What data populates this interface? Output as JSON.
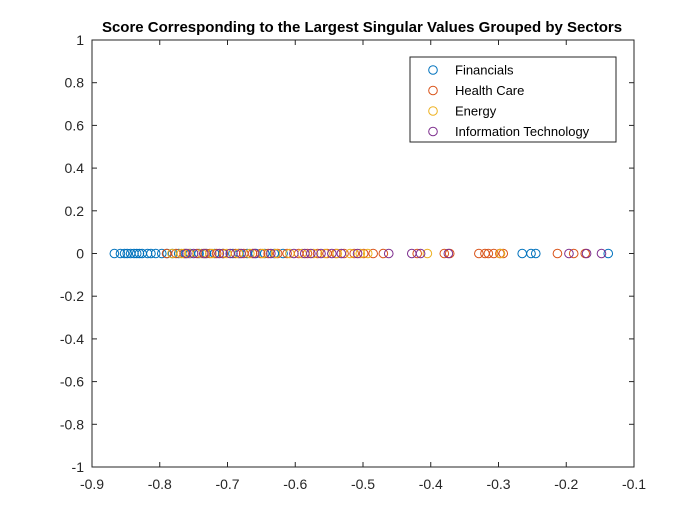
{
  "chart_data": {
    "type": "scatter",
    "title": "Score Corresponding to the Largest Singular Values Grouped by Sectors",
    "xlabel": "",
    "ylabel": "",
    "xlim": [
      -0.9,
      -0.1
    ],
    "ylim": [
      -1,
      1
    ],
    "x_ticks": [
      "-0.9",
      "-0.8",
      "-0.7",
      "-0.6",
      "-0.5",
      "-0.4",
      "-0.3",
      "-0.2",
      "-0.1"
    ],
    "y_ticks": [
      "1",
      "0.8",
      "0.6",
      "0.4",
      "0.2",
      "0",
      "-0.2",
      "-0.4",
      "-0.6",
      "-0.8",
      "-1"
    ],
    "grid": false,
    "legend_position": "top-right",
    "marker": "open-circle",
    "series": [
      {
        "name": "Financials",
        "color": "#0072BD",
        "x": [
          -0.867,
          -0.858,
          -0.852,
          -0.848,
          -0.843,
          -0.838,
          -0.834,
          -0.83,
          -0.826,
          -0.818,
          -0.813,
          -0.806,
          -0.797,
          -0.789,
          -0.781,
          -0.772,
          -0.762,
          -0.755,
          -0.742,
          -0.731,
          -0.719,
          -0.707,
          -0.692,
          -0.683,
          -0.671,
          -0.658,
          -0.645,
          -0.631,
          -0.618,
          -0.265,
          -0.252,
          -0.245,
          -0.138
        ],
        "y": [
          0,
          0,
          0,
          0,
          0,
          0,
          0,
          0,
          0,
          0,
          0,
          0,
          0,
          0,
          0,
          0,
          0,
          0,
          0,
          0,
          0,
          0,
          0,
          0,
          0,
          0,
          0,
          0,
          0,
          0,
          0,
          0,
          0
        ]
      },
      {
        "name": "Health Care",
        "color": "#D95319",
        "x": [
          -0.79,
          -0.776,
          -0.764,
          -0.745,
          -0.733,
          -0.726,
          -0.716,
          -0.706,
          -0.688,
          -0.676,
          -0.663,
          -0.651,
          -0.64,
          -0.626,
          -0.612,
          -0.595,
          -0.582,
          -0.567,
          -0.553,
          -0.54,
          -0.528,
          -0.513,
          -0.499,
          -0.485,
          -0.47,
          -0.42,
          -0.38,
          -0.372,
          -0.329,
          -0.32,
          -0.315,
          -0.307,
          -0.298,
          -0.293,
          -0.213,
          -0.189,
          -0.172
        ],
        "y": [
          0,
          0,
          0,
          0,
          0,
          0,
          0,
          0,
          0,
          0,
          0,
          0,
          0,
          0,
          0,
          0,
          0,
          0,
          0,
          0,
          0,
          0,
          0,
          0,
          0,
          0,
          0,
          0,
          0,
          0,
          0,
          0,
          0,
          0,
          0,
          0,
          0
        ]
      },
      {
        "name": "Energy",
        "color": "#EDB120",
        "x": [
          -0.782,
          -0.768,
          -0.757,
          -0.738,
          -0.723,
          -0.701,
          -0.684,
          -0.667,
          -0.648,
          -0.629,
          -0.608,
          -0.59,
          -0.573,
          -0.556,
          -0.538,
          -0.519,
          -0.504,
          -0.493,
          -0.405,
          -0.297
        ],
        "y": [
          0,
          0,
          0,
          0,
          0,
          0,
          0,
          0,
          0,
          0,
          0,
          0,
          0,
          0,
          0,
          0,
          0,
          0,
          0,
          0
        ]
      },
      {
        "name": "Information Technology",
        "color": "#7E2F8E",
        "x": [
          -0.76,
          -0.75,
          -0.735,
          -0.712,
          -0.696,
          -0.68,
          -0.66,
          -0.636,
          -0.602,
          -0.586,
          -0.577,
          -0.562,
          -0.546,
          -0.532,
          -0.508,
          -0.462,
          -0.428,
          -0.415,
          -0.374,
          -0.196,
          -0.17,
          -0.148
        ],
        "y": [
          0,
          0,
          0,
          0,
          0,
          0,
          0,
          0,
          0,
          0,
          0,
          0,
          0,
          0,
          0,
          0,
          0,
          0,
          0,
          0,
          0,
          0
        ]
      }
    ]
  }
}
